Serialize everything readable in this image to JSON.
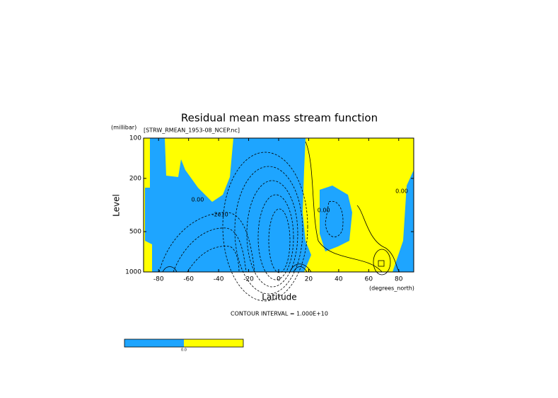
{
  "chart_data": {
    "type": "contour",
    "title": "Residual mean mass stream function",
    "subtitle": "[STRW_RMEAN_1953-08_NCEP.nc]",
    "y_unit": "(millibar)",
    "y_label": "Level",
    "x_label": "Latitude",
    "x_unit": "(degrees_north)",
    "note": "CONTOUR INTERVAL = 1.000E+10",
    "xlim": [
      -90,
      90
    ],
    "xticks": [
      -80,
      -60,
      -40,
      -20,
      0,
      20,
      40,
      60,
      80
    ],
    "ylim": [
      1000,
      100
    ],
    "yticks": [
      100,
      200,
      500,
      1000
    ],
    "log_y": true,
    "colors": {
      "negative": "#1ea5ff",
      "positive": "#ffff00"
    },
    "contour_labels": [
      {
        "text": "0.00",
        "x": -54,
        "y": 288
      },
      {
        "text": "-2e10",
        "x": -39,
        "y": 372
      },
      {
        "text": "0.00",
        "x": 30,
        "y": 347
      },
      {
        "text": "0.00",
        "x": 82,
        "y": 249
      }
    ],
    "colorbar_label": "0.0"
  }
}
